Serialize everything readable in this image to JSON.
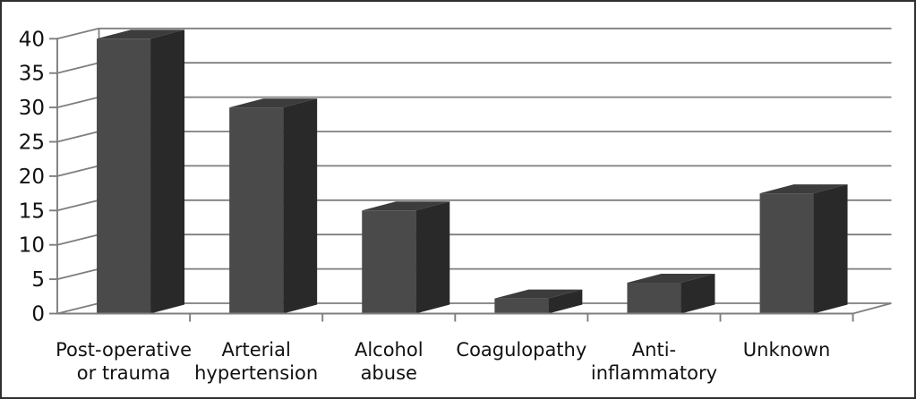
{
  "figure": {
    "background": "#ffffff",
    "border_color": "#2f2f2f"
  },
  "chart_data": {
    "type": "bar",
    "style": "3d-column",
    "title": "",
    "xlabel": "",
    "ylabel": "",
    "categories": [
      "Post-operative or trauma",
      "Arterial hypertension",
      "Alcohol abuse",
      "Coagulopathy",
      "Anti-inflammatory",
      "Unknown"
    ],
    "category_label_lines": [
      [
        "Post-operative",
        "or trauma"
      ],
      [
        "Arterial",
        "hypertension"
      ],
      [
        "Alcohol",
        "abuse"
      ],
      [
        "Coagulopathy"
      ],
      [
        "Anti-",
        "inflammatory"
      ],
      [
        "Unknown"
      ]
    ],
    "values": [
      40,
      30,
      15,
      2.2,
      4.5,
      17.5
    ],
    "ylim": [
      0,
      40
    ],
    "ytick_step": 5,
    "yticks": [
      0,
      5,
      10,
      15,
      20,
      25,
      30,
      35,
      40
    ],
    "grid": true,
    "legend": false,
    "colors": {
      "bar_front": "#4a4a4a",
      "bar_top": "#3c3c3c",
      "bar_side": "#292929",
      "gridline": "#7e7e7e",
      "axis": "#7e7e7e",
      "text": "#111111"
    }
  }
}
